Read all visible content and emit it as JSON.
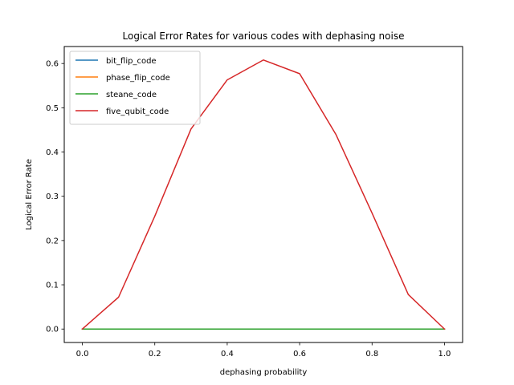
{
  "chart_data": {
    "type": "line",
    "title": "Logical Error Rates for various codes with dephasing noise",
    "xlabel": "dephasing probability",
    "ylabel": "Logical Error Rate",
    "xlim": [
      -0.05,
      1.05
    ],
    "ylim": [
      -0.0304,
      0.6384
    ],
    "xticks": [
      0.0,
      0.2,
      0.4,
      0.6,
      0.8,
      1.0
    ],
    "xtick_labels": [
      "0.0",
      "0.2",
      "0.4",
      "0.6",
      "0.8",
      "1.0"
    ],
    "yticks": [
      0.0,
      0.1,
      0.2,
      0.3,
      0.4,
      0.5,
      0.6
    ],
    "ytick_labels": [
      "0.0",
      "0.1",
      "0.2",
      "0.3",
      "0.4",
      "0.5",
      "0.6"
    ],
    "grid": false,
    "legend_position": "top-left",
    "x": [
      0.0,
      0.1,
      0.2,
      0.3,
      0.4,
      0.5,
      0.6,
      0.7,
      0.8,
      0.9,
      1.0
    ],
    "series": [
      {
        "name": "bit_flip_code",
        "color": "#1f77b4",
        "values": [
          0,
          0,
          0,
          0,
          0,
          0,
          0,
          0,
          0,
          0,
          0
        ]
      },
      {
        "name": "phase_flip_code",
        "color": "#ff7f0e",
        "values": [
          0,
          0,
          0,
          0,
          0,
          0,
          0,
          0,
          0,
          0,
          0
        ]
      },
      {
        "name": "steane_code",
        "color": "#2ca02c",
        "values": [
          0,
          0,
          0,
          0,
          0,
          0,
          0,
          0,
          0,
          0,
          0
        ]
      },
      {
        "name": "five_qubit_code",
        "color": "#d62728",
        "values": [
          0.0,
          0.072,
          0.255,
          0.452,
          0.563,
          0.608,
          0.577,
          0.44,
          0.262,
          0.078,
          0.0
        ]
      }
    ]
  }
}
